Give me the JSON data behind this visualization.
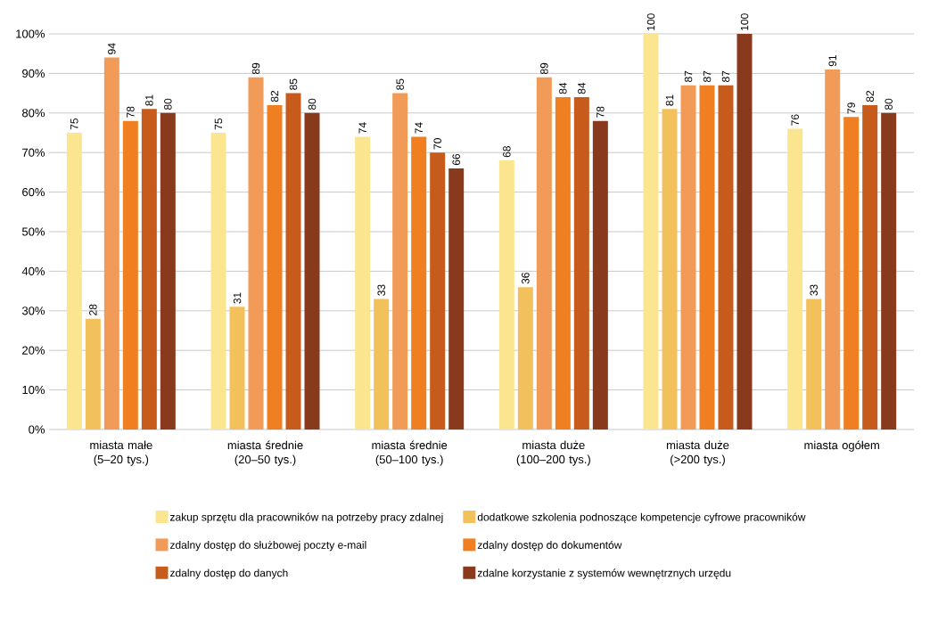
{
  "chart_data": {
    "type": "bar",
    "categories": [
      "miasta małe (5–20 tys.)",
      "miasta średnie (20–50 tys.)",
      "miasta średnie (50–100 tys.)",
      "miasta duże (100–200 tys.)",
      "miasta duże (>200 tys.)",
      "miasta ogółem"
    ],
    "series": [
      {
        "name": "zakup sprzętu dla pracowników na potrzeby pracy zdalnej",
        "color": "#fbe68f",
        "values": [
          75,
          75,
          74,
          68,
          100,
          76
        ]
      },
      {
        "name": "dodatkowe szkolenia podnoszące kompetencje cyfrowe pracowników",
        "color": "#f2c15c",
        "values": [
          28,
          31,
          33,
          36,
          81,
          33
        ]
      },
      {
        "name": "zdalny dostęp do służbowej poczty e-mail",
        "color": "#f29b58",
        "values": [
          94,
          89,
          85,
          89,
          87,
          91
        ]
      },
      {
        "name": "zdalny dostęp do dokumentów",
        "color": "#f07f22",
        "values": [
          78,
          82,
          74,
          84,
          87,
          79
        ]
      },
      {
        "name": "zdalny dostęp do danych",
        "color": "#c75b1c",
        "values": [
          81,
          85,
          70,
          84,
          87,
          82
        ]
      },
      {
        "name": "zdalne korzystanie z systemów wewnętrznych urzędu",
        "color": "#8a3a1c",
        "values": [
          80,
          80,
          66,
          78,
          100,
          80
        ]
      }
    ],
    "ylim": [
      0,
      100
    ],
    "yticks": [
      {
        "value": 0,
        "label": "0%"
      },
      {
        "value": 10,
        "label": "10%"
      },
      {
        "value": 20,
        "label": "20%"
      },
      {
        "value": 30,
        "label": "30%"
      },
      {
        "value": 40,
        "label": "40%"
      },
      {
        "value": 50,
        "label": "50%"
      },
      {
        "value": 60,
        "label": "60%"
      },
      {
        "value": 70,
        "label": "70%"
      },
      {
        "value": 80,
        "label": "80%"
      },
      {
        "value": 90,
        "label": "90%"
      },
      {
        "value": 100,
        "label": "100%"
      }
    ],
    "grid": "y",
    "legend": "bottom",
    "data_labels": true
  }
}
